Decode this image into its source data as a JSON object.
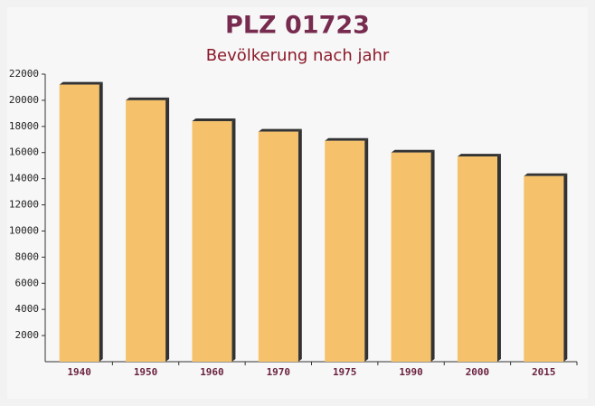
{
  "chart_data": {
    "type": "bar",
    "title": "PLZ 01723",
    "subtitle": "Bevölkerung nach jahr",
    "categories": [
      "1940",
      "1950",
      "1960",
      "1970",
      "1975",
      "1990",
      "2000",
      "2015"
    ],
    "values": [
      21200,
      20000,
      18400,
      17600,
      16900,
      16000,
      15700,
      14200
    ],
    "color": "#f5c26b",
    "shadow_color": "#333333",
    "ylim": [
      0,
      22000
    ],
    "yticks": [
      2000,
      4000,
      6000,
      8000,
      10000,
      12000,
      14000,
      16000,
      18000,
      20000,
      22000
    ]
  }
}
